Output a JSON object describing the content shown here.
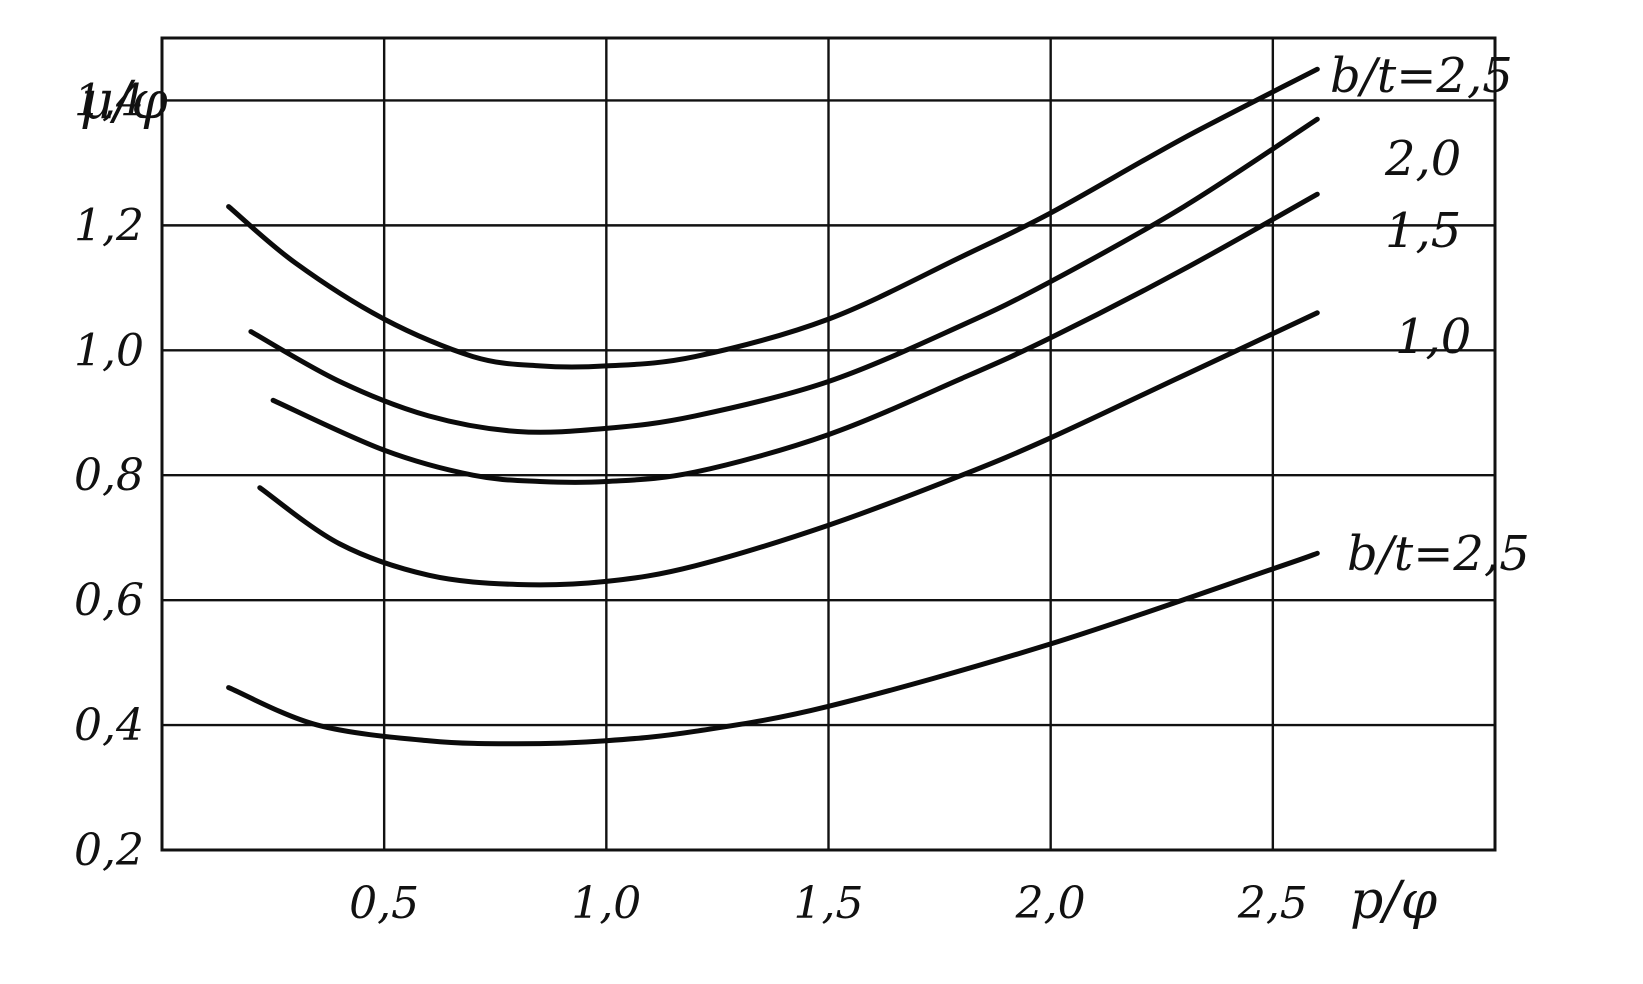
{
  "chart_data": {
    "type": "line",
    "title": "",
    "xlabel": "p/φ",
    "ylabel": "μ/φ",
    "xlim": [
      0,
      3.0
    ],
    "ylim": [
      0.2,
      1.5
    ],
    "x_ticks": [
      0.5,
      1.0,
      1.5,
      2.0,
      2.5
    ],
    "x_tick_labels": [
      "0,5",
      "1,0",
      "1,5",
      "2,0",
      "2,5"
    ],
    "y_ticks": [
      0.2,
      0.4,
      0.6,
      0.8,
      1.0,
      1.2,
      1.4
    ],
    "y_tick_labels": [
      "0,2",
      "0,4",
      "0,6",
      "0,8",
      "1,0",
      "1,2",
      "1,4"
    ],
    "grid": true,
    "series": [
      {
        "name": "b/t=2,5",
        "x": [
          0.15,
          0.3,
          0.5,
          0.7,
          0.85,
          1.0,
          1.2,
          1.5,
          1.8,
          2.0,
          2.3,
          2.6
        ],
        "y": [
          1.23,
          1.14,
          1.05,
          0.99,
          0.975,
          0.975,
          0.99,
          1.05,
          1.15,
          1.22,
          1.34,
          1.45
        ]
      },
      {
        "name": "2,0",
        "x": [
          0.2,
          0.4,
          0.6,
          0.8,
          1.0,
          1.2,
          1.5,
          1.8,
          2.0,
          2.3,
          2.6
        ],
        "y": [
          1.03,
          0.95,
          0.895,
          0.87,
          0.875,
          0.895,
          0.95,
          1.04,
          1.11,
          1.23,
          1.37
        ]
      },
      {
        "name": "1,5",
        "x": [
          0.25,
          0.5,
          0.7,
          0.85,
          1.0,
          1.2,
          1.5,
          1.8,
          2.0,
          2.3,
          2.6
        ],
        "y": [
          0.92,
          0.84,
          0.8,
          0.79,
          0.79,
          0.805,
          0.865,
          0.955,
          1.02,
          1.13,
          1.25
        ]
      },
      {
        "name": "1,0",
        "x": [
          0.22,
          0.4,
          0.6,
          0.8,
          1.0,
          1.2,
          1.5,
          1.8,
          2.0,
          2.3,
          2.6
        ],
        "y": [
          0.78,
          0.69,
          0.64,
          0.625,
          0.63,
          0.655,
          0.72,
          0.8,
          0.86,
          0.96,
          1.06
        ]
      },
      {
        "name": "b/t=2,5",
        "x": [
          0.15,
          0.35,
          0.6,
          0.8,
          1.0,
          1.2,
          1.5,
          2.0,
          2.5,
          2.6
        ],
        "y": [
          0.46,
          0.4,
          0.375,
          0.37,
          0.375,
          0.39,
          0.43,
          0.53,
          0.65,
          0.675
        ]
      }
    ],
    "labels": [
      "b/t=2,5",
      "2,0",
      "1,5",
      "1,0",
      "b/t=2,5"
    ]
  }
}
